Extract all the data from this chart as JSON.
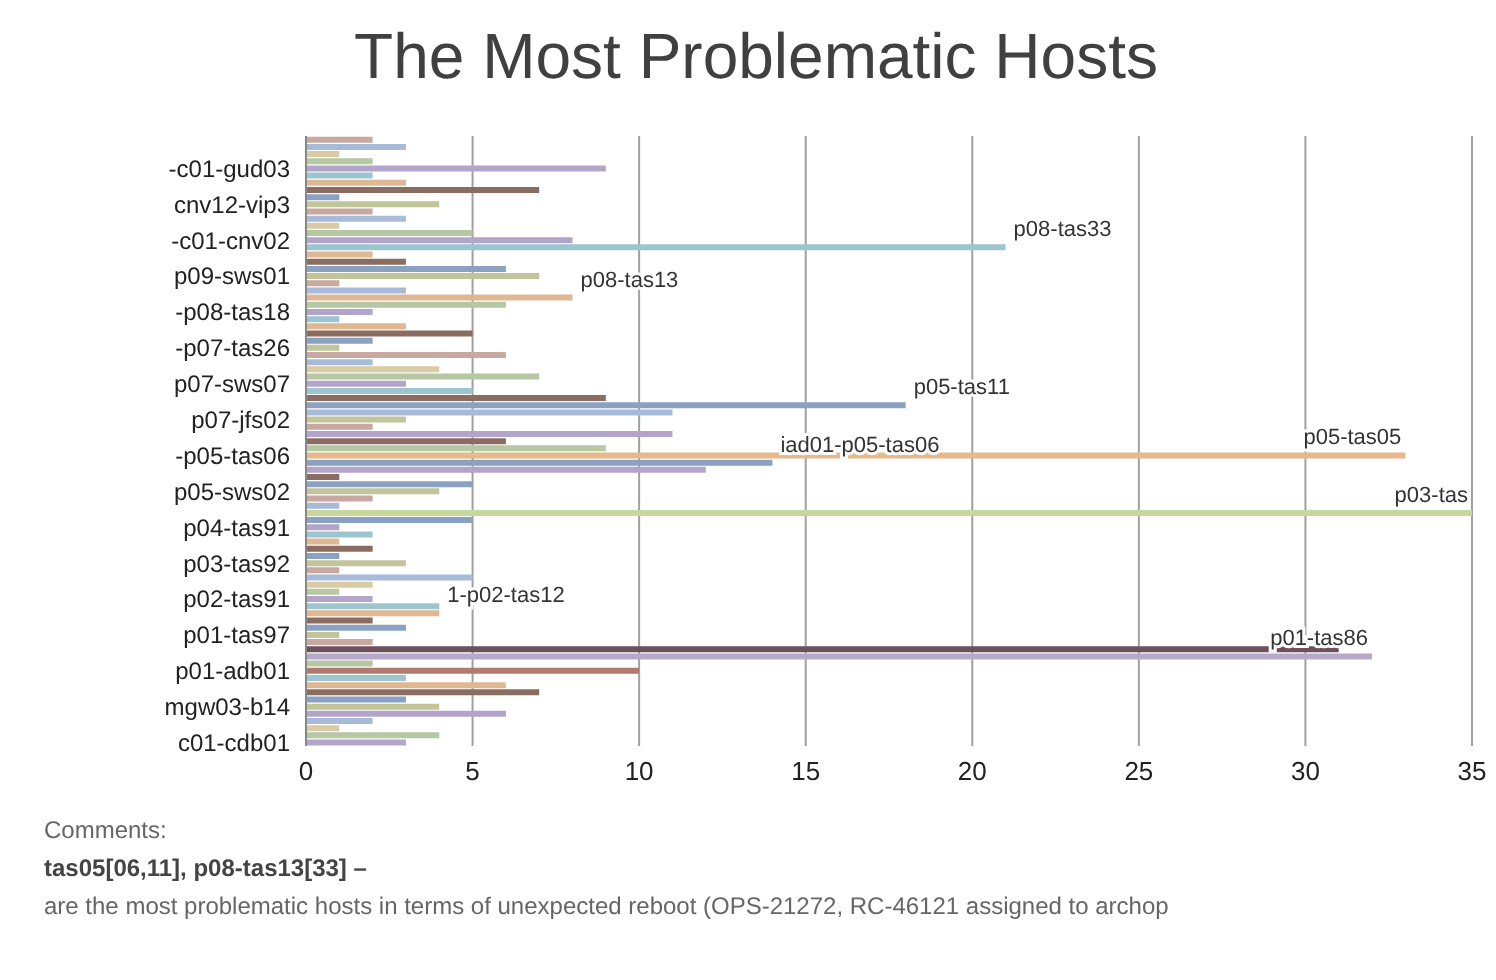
{
  "chart_data": {
    "type": "bar",
    "orientation": "horizontal",
    "title": "The Most Problematic Hosts",
    "categories": [
      null,
      null,
      null,
      null,
      "-c01-gud03",
      null,
      null,
      null,
      null,
      "cnv12-vip3",
      null,
      null,
      null,
      null,
      "-c01-cnv02",
      null,
      null,
      null,
      null,
      "p09-sws01",
      null,
      null,
      null,
      null,
      "-p08-tas18",
      null,
      null,
      null,
      null,
      "-p07-tas26",
      null,
      null,
      null,
      null,
      "p07-sws07",
      null,
      null,
      null,
      null,
      "p07-jfs02",
      null,
      null,
      null,
      null,
      "-p05-tas06",
      null,
      null,
      null,
      null,
      "p05-sws02",
      null,
      null,
      null,
      null,
      "p04-tas91",
      null,
      null,
      null,
      null,
      "p03-tas92",
      null,
      null,
      null,
      null,
      "p02-tas91",
      null,
      null,
      null,
      null,
      "p01-tas97",
      null,
      null,
      null,
      null,
      "p01-adb01",
      null,
      null,
      null,
      null,
      "mgw03-b14",
      null,
      null,
      null,
      null,
      "c01-cdb01"
    ],
    "values": [
      2,
      3,
      1,
      2,
      9,
      2,
      3,
      7,
      1,
      4,
      2,
      3,
      1,
      5,
      8,
      21,
      2,
      3,
      6,
      7,
      1,
      3,
      8,
      6,
      2,
      1,
      3,
      5,
      2,
      1,
      6,
      2,
      4,
      7,
      3,
      5,
      9,
      18,
      11,
      3,
      2,
      11,
      6,
      9,
      33,
      14,
      12,
      1,
      5,
      4,
      2,
      1,
      35,
      5,
      1,
      2,
      1,
      2,
      1,
      3,
      1,
      5,
      2,
      1,
      2,
      4,
      4,
      2,
      3,
      1,
      2,
      31,
      32,
      2,
      10,
      3,
      6,
      7,
      3,
      4,
      6,
      2,
      1,
      4,
      3
    ],
    "colors": [
      "#c8a9a1",
      "#a7bbd8",
      "#d9cba5",
      "#b5c8a3",
      "#b2a5c9",
      "#9cc5cf",
      "#dfb793",
      "#8a6d60",
      "#8aa1c2",
      "#c2c49a",
      "#c8a9a1",
      "#a7bbd8",
      "#d9cba5",
      "#b5c8a3",
      "#b2a5c9",
      "#9cc5cf",
      "#dfb793",
      "#8a6d60",
      "#8aa1c2",
      "#c2c49a",
      "#c8a9a1",
      "#a7bbd8",
      "#dfb793",
      "#b5c8a3",
      "#b2a5c9",
      "#9cc5cf",
      "#dfb793",
      "#8a6d60",
      "#8aa1c2",
      "#c2c49a",
      "#c8a9a1",
      "#a7bbd8",
      "#d9cba5",
      "#b5c8a3",
      "#b2a5c9",
      "#9cc5cf",
      "#8a6d60",
      "#8aa1c2",
      "#a7bbd8",
      "#c2c49a",
      "#c8a9a1",
      "#b2a5c9",
      "#8a6d60",
      "#b5c8a3",
      "#e6b88a",
      "#8aa1c2",
      "#b2a5c9",
      "#8a6d60",
      "#8aa1c2",
      "#c2c49a",
      "#c8a9a1",
      "#a7bbd8",
      "#c8d89c",
      "#8aa1c2",
      "#b2a5c9",
      "#9cc5cf",
      "#dfb793",
      "#8a6d60",
      "#8aa1c2",
      "#c2c49a",
      "#c8a9a1",
      "#a7bbd8",
      "#d9cba5",
      "#b5c8a3",
      "#b2a5c9",
      "#9cc5cf",
      "#dfb793",
      "#8a6d60",
      "#8aa1c2",
      "#c2c49a",
      "#c8a9a1",
      "#6e4f5c",
      "#b6a9c9",
      "#b5c8a3",
      "#b07a6e",
      "#9cc5cf",
      "#dfb793",
      "#8a6d60",
      "#8aa1c2",
      "#c2c49a",
      "#b2a5c9",
      "#a7bbd8",
      "#d9cba5",
      "#b5c8a3",
      "#b2a5c9"
    ],
    "value_labels": [
      null,
      null,
      null,
      null,
      null,
      null,
      null,
      null,
      null,
      null,
      null,
      null,
      null,
      null,
      null,
      "p08-tas33",
      null,
      null,
      null,
      null,
      null,
      null,
      "p08-tas13",
      null,
      null,
      null,
      null,
      null,
      null,
      null,
      null,
      null,
      null,
      null,
      null,
      null,
      null,
      "p05-tas11",
      null,
      null,
      null,
      null,
      null,
      null,
      "p05-tas05",
      "iad01-p05-tas06",
      null,
      null,
      null,
      null,
      null,
      null,
      "p03-tas",
      null,
      null,
      null,
      null,
      null,
      null,
      null,
      null,
      null,
      null,
      null,
      null,
      null,
      "1-p02-tas12",
      null,
      null,
      null,
      null,
      null,
      "p01-tas86",
      null,
      null,
      null,
      null,
      null,
      null,
      null,
      null,
      null,
      null,
      null,
      null
    ],
    "xlim": [
      0,
      35
    ],
    "xticks": [
      0,
      5,
      10,
      15,
      20,
      25,
      30,
      35
    ],
    "grid": "x",
    "annotations": [
      "Comments:",
      "tas05[06,11],  p08-tas13[33] –",
      "are the most problematic hosts in terms of unexpected reboot (OPS-21272, RC-46121 assigned to archop"
    ]
  }
}
